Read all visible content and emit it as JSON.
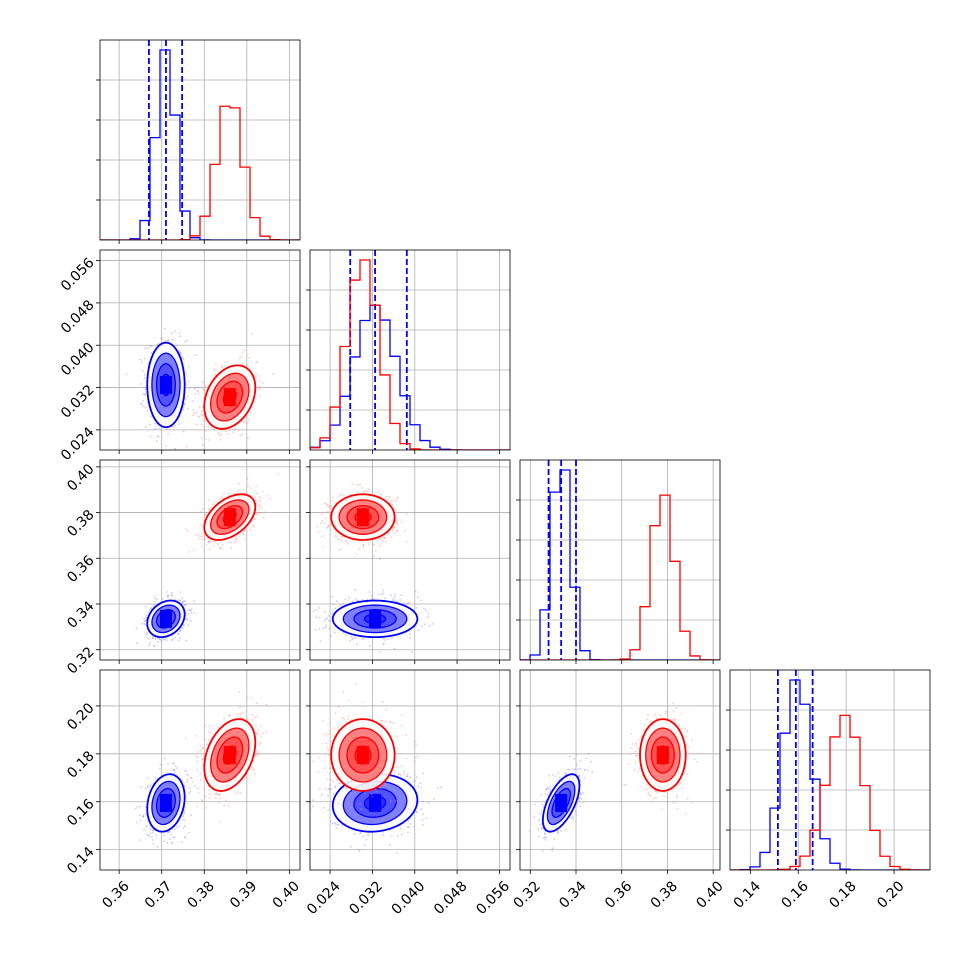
{
  "chart_data": {
    "type": "corner",
    "parameters": [
      {
        "ticks": [
          "0.36",
          "0.37",
          "0.38",
          "0.39",
          "0.40"
        ],
        "tick_values": [
          0.36,
          0.37,
          0.38,
          0.39,
          0.4
        ],
        "range": [
          0.3555,
          0.4025
        ]
      },
      {
        "ticks": [
          "0.024",
          "0.032",
          "0.040",
          "0.048",
          "0.056"
        ],
        "tick_values": [
          0.024,
          0.032,
          0.04,
          0.048,
          0.056
        ],
        "range": [
          0.0202,
          0.058
        ]
      },
      {
        "ticks": [
          "0.32",
          "0.34",
          "0.36",
          "0.38",
          "0.40"
        ],
        "tick_values": [
          0.32,
          0.34,
          0.36,
          0.38,
          0.4
        ],
        "range": [
          0.3155,
          0.403
        ]
      },
      {
        "ticks": [
          "0.14",
          "0.16",
          "0.18",
          "0.20"
        ],
        "tick_values": [
          0.14,
          0.16,
          0.18,
          0.2
        ],
        "range": [
          0.1315,
          0.215
        ]
      }
    ],
    "series": [
      {
        "name": "",
        "color": "#0000ff",
        "means": [
          0.371,
          0.0325,
          0.3335,
          0.1595
        ],
        "sigmas": [
          0.0022,
          0.004,
          0.004,
          0.006
        ],
        "correlations": {
          "1-0": 0.0,
          "2-0": 0.25,
          "2-1": 0.0,
          "3-0": 0.2,
          "3-1": 0.1,
          "3-2": 0.6
        },
        "quantiles": [
          [
            0.367,
            0.371,
            0.3748
          ],
          [
            0.0278,
            0.0325,
            0.0385
          ],
          [
            0.328,
            0.3335,
            0.34
          ],
          [
            0.1515,
            0.159,
            0.166
          ]
        ]
      },
      {
        "name": "",
        "color": "#ff0000",
        "means": [
          0.386,
          0.0302,
          0.378,
          0.1795
        ],
        "sigmas": [
          0.003,
          0.003,
          0.005,
          0.0075
        ],
        "correlations": {
          "1-0": 0.3,
          "2-0": 0.45,
          "2-1": 0.0,
          "3-0": 0.35,
          "3-1": 0.0,
          "3-2": 0.0
        },
        "quantiles": []
      }
    ],
    "grid": true,
    "legend": "none"
  }
}
